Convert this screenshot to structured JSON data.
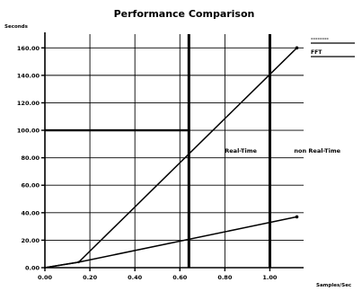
{
  "chart_data": {
    "type": "line",
    "title": "Performance Comparison",
    "xlabel": "Samples/Sec",
    "ylabel": "Seconds",
    "x_tick_labels": [
      "0.00",
      "0.20",
      "0.40",
      "0.60",
      "0.80",
      "1.00"
    ],
    "y_tick_labels": [
      "0.00",
      "20.00",
      "40.00",
      "60.00",
      "80.00",
      "100.00",
      "120.00",
      "140.00",
      "160.00"
    ],
    "xlim": [
      0.0,
      1.15
    ],
    "ylim": [
      0.0,
      170.0
    ],
    "grid": true,
    "legend": {
      "placement": "top-right",
      "entries": [
        "--------",
        "FFT"
      ]
    },
    "series": [
      {
        "x": [
          0.0,
          0.15,
          1.12
        ],
        "y": [
          0.0,
          4.0,
          160.0
        ]
      },
      {
        "x": [
          0.0,
          0.15,
          1.12
        ],
        "y": [
          0.0,
          4.0,
          37.0
        ]
      }
    ],
    "reference_lines": [
      {
        "axis": "x",
        "value": 0.64,
        "label": "Real-Time"
      },
      {
        "axis": "x",
        "value": 1.0,
        "label": "non Real-Time"
      },
      {
        "axis": "y",
        "value": 100.0,
        "x_range": [
          0.0,
          0.64
        ]
      }
    ]
  }
}
